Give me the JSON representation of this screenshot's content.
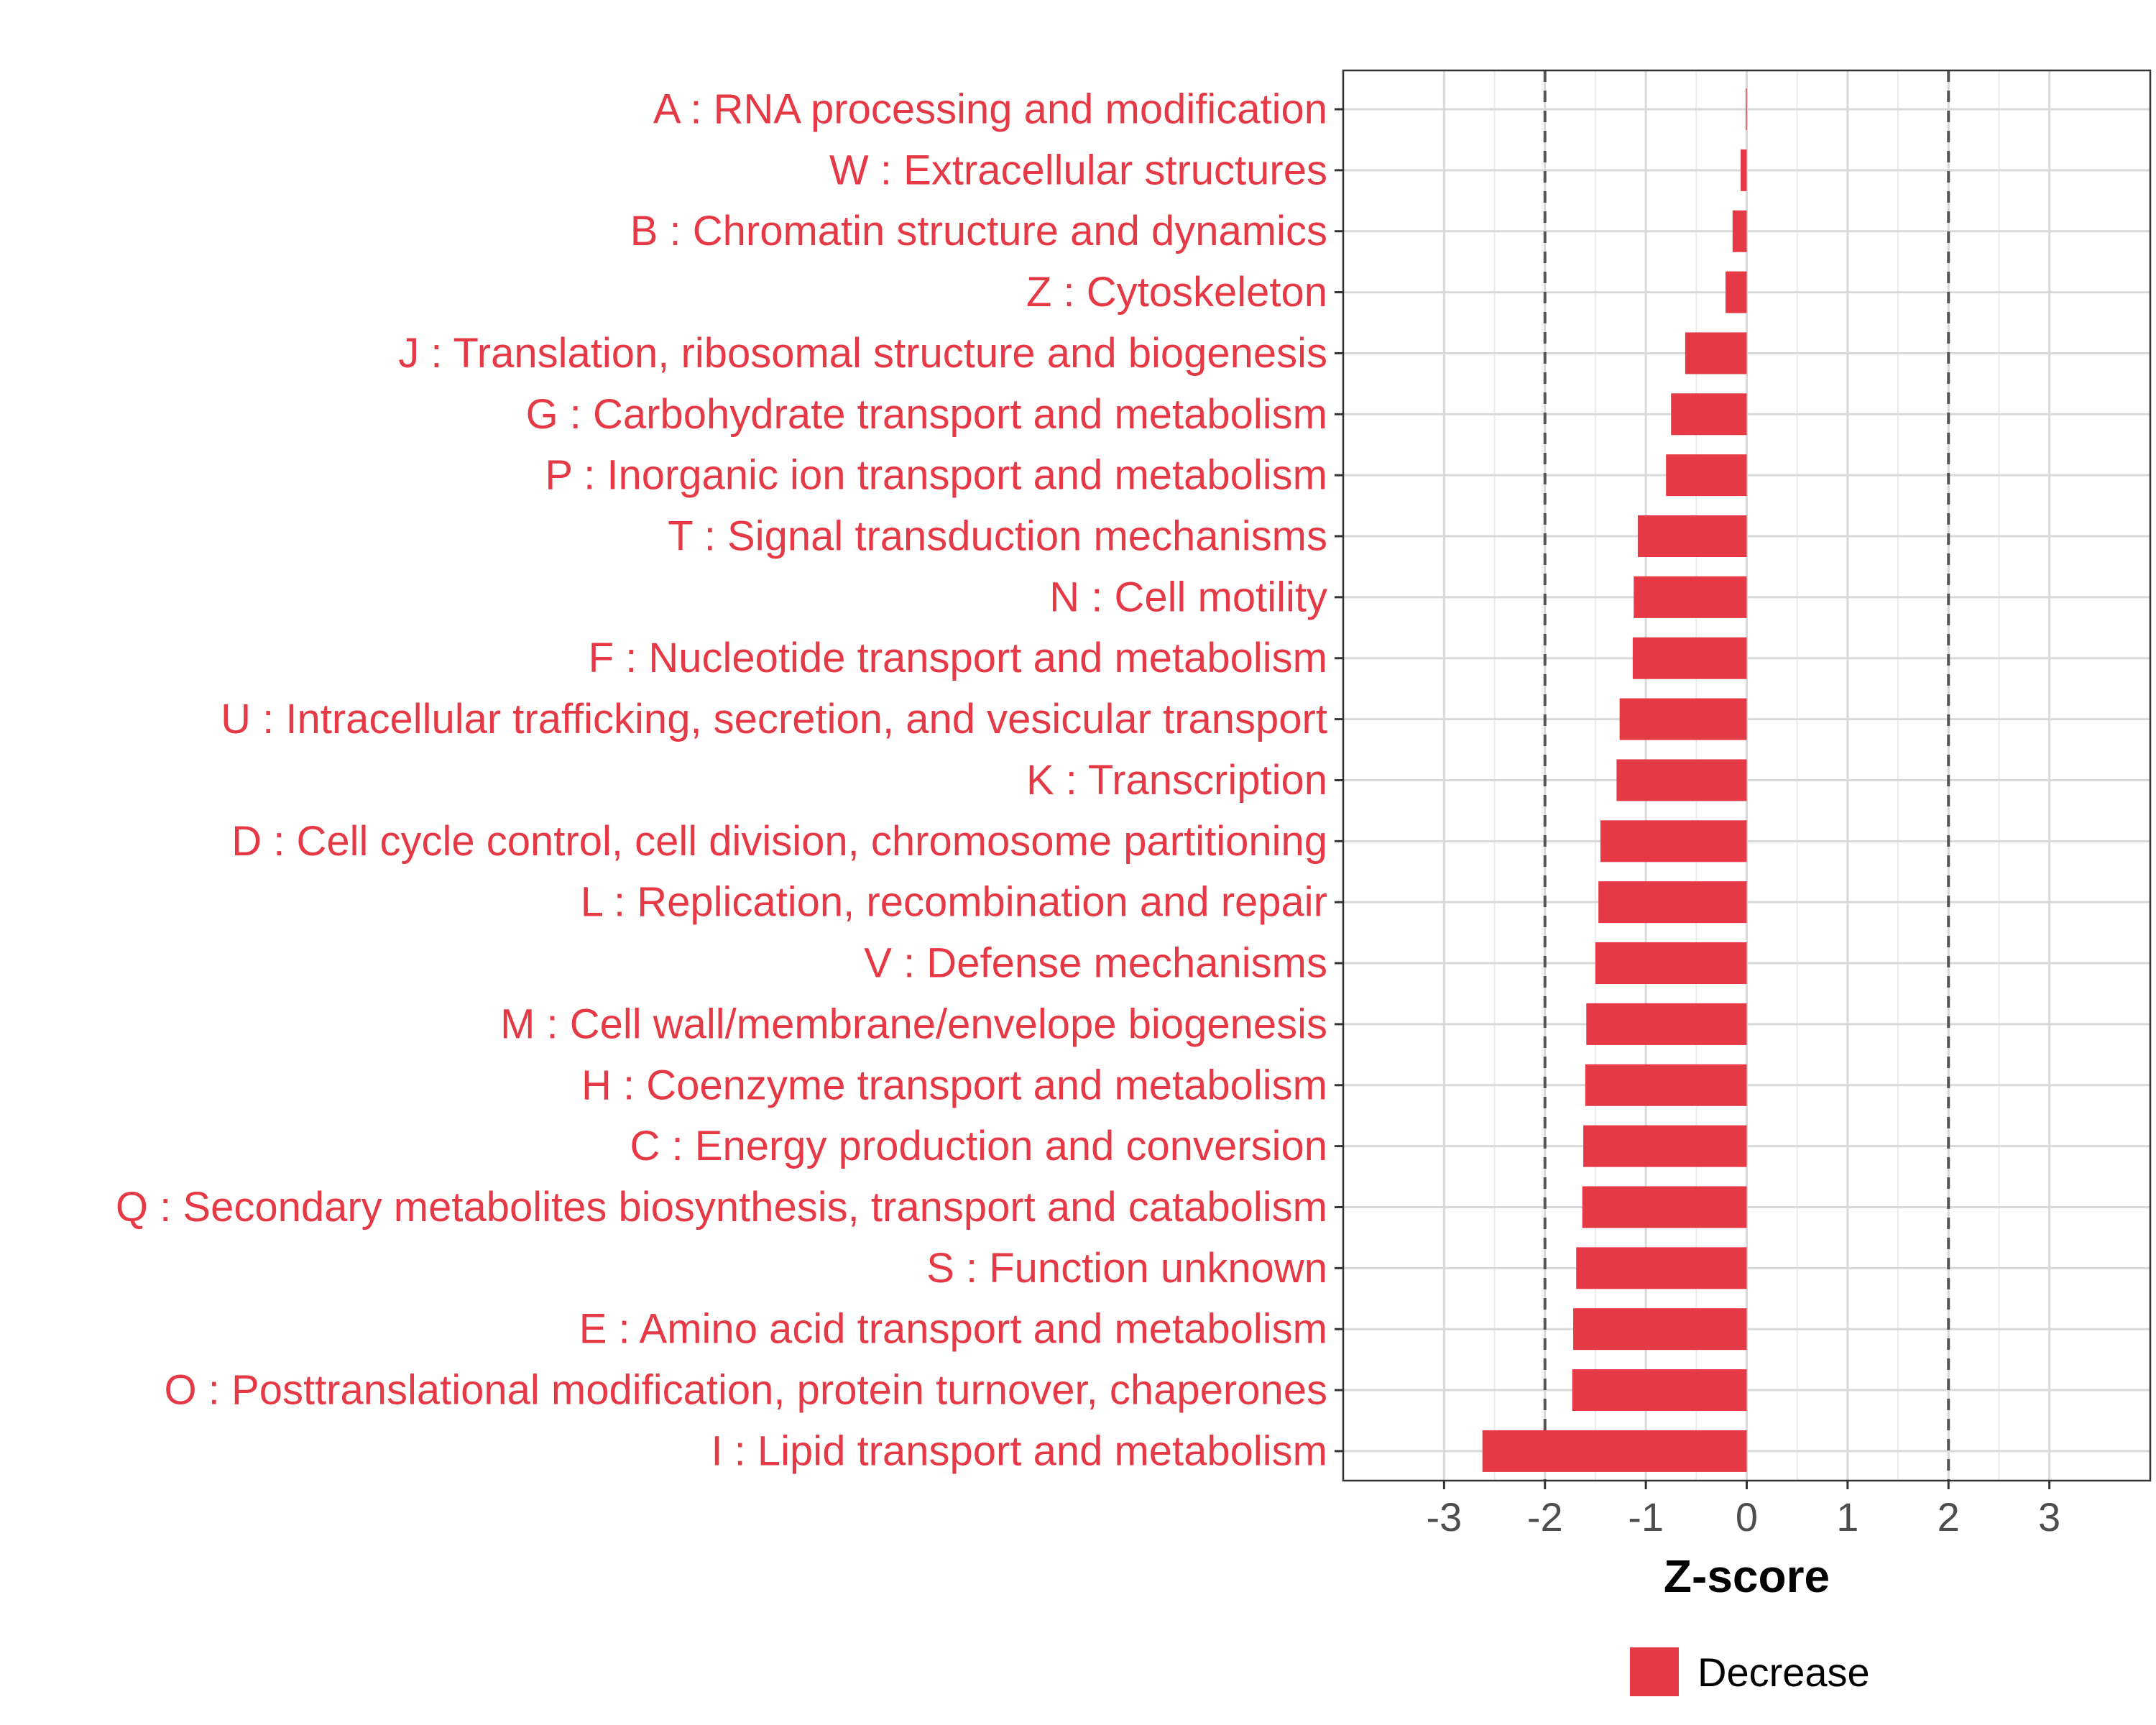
{
  "chart_data": {
    "type": "bar",
    "orientation": "horizontal",
    "title": "",
    "xlabel": "Z-score",
    "ylabel": "",
    "xlim": [
      -4.0,
      4.0
    ],
    "xticks": [
      -3,
      -2,
      -1,
      0,
      1,
      2,
      3
    ],
    "xtick_labels": [
      "-3",
      "-2",
      "-1",
      "0",
      "1",
      "2",
      "3"
    ],
    "reference_lines": [
      -2,
      2
    ],
    "grid": true,
    "categories": [
      "A : RNA processing and modification",
      "W : Extracellular structures",
      "B : Chromatin structure and dynamics",
      "Z : Cytoskeleton",
      "J : Translation, ribosomal structure and biogenesis",
      "G : Carbohydrate transport and metabolism",
      "P : Inorganic ion transport and metabolism",
      "T : Signal transduction mechanisms",
      "N : Cell motility",
      "F : Nucleotide transport and metabolism",
      "U : Intracellular trafficking, secretion, and vesicular transport",
      "K : Transcription",
      "D : Cell cycle control, cell division, chromosome partitioning",
      "L : Replication, recombination and repair",
      "V : Defense mechanisms",
      "M : Cell wall/membrane/envelope biogenesis",
      "H : Coenzyme transport and metabolism",
      "C : Energy production and conversion",
      "Q : Secondary metabolites biosynthesis, transport and catabolism",
      "S : Function unknown",
      "E : Amino acid transport and metabolism",
      "O : Posttranslational modification, protein turnover, chaperones",
      "I : Lipid transport and metabolism"
    ],
    "values": [
      -0.01,
      -0.06,
      -0.14,
      -0.21,
      -0.61,
      -0.75,
      -0.8,
      -1.08,
      -1.12,
      -1.13,
      -1.26,
      -1.29,
      -1.45,
      -1.47,
      -1.5,
      -1.59,
      -1.6,
      -1.62,
      -1.63,
      -1.69,
      -1.72,
      -1.73,
      -2.62
    ],
    "series": [
      {
        "name": "Decrease",
        "color": "#e63946"
      }
    ],
    "legend": {
      "position": "bottom",
      "entries": [
        "Decrease"
      ]
    }
  },
  "colors": {
    "bar": "#e63946",
    "label": "#e63946",
    "grid": "#d9d9d9",
    "refline": "#555555",
    "border": "#333333"
  }
}
